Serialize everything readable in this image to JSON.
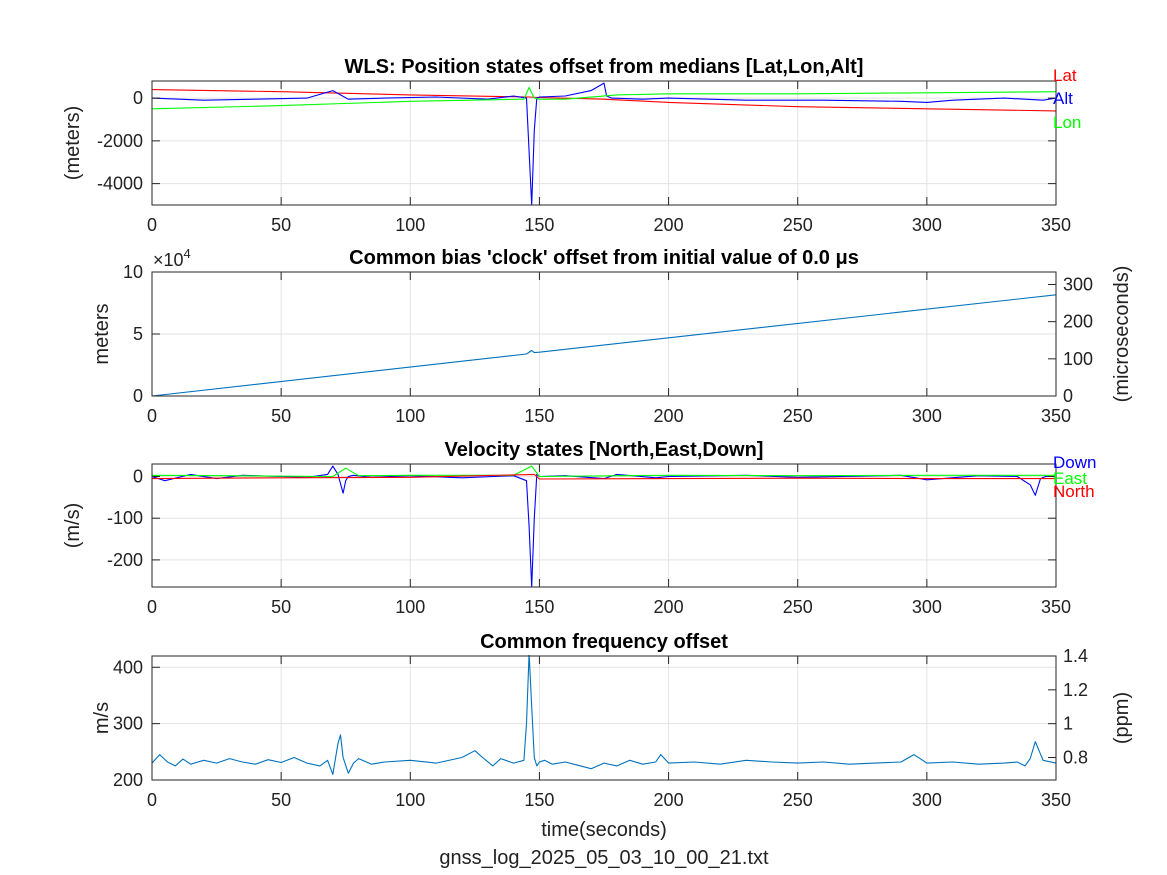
{
  "footer": {
    "filename": "gnss_log_2025_05_03_10_00_21.txt"
  },
  "colors": {
    "red": "#ff0000",
    "green": "#00ff00",
    "blue": "#0000ff",
    "series": "#0072bd"
  },
  "chart_data": [
    {
      "type": "line",
      "title": "WLS: Position states offset from medians [Lat,Lon,Alt]",
      "xlabel": "",
      "ylabel": "(meters)",
      "xlim": [
        0,
        350
      ],
      "ylim": [
        -5000,
        800
      ],
      "xticks": [
        0,
        50,
        100,
        150,
        200,
        250,
        300,
        350
      ],
      "xtick_labels": [
        "0",
        "50",
        "100",
        "150",
        "200",
        "250",
        "300",
        "350"
      ],
      "yticks": [
        0,
        -2000,
        -4000
      ],
      "ytick_labels": [
        "0",
        "-2000",
        "-4000"
      ],
      "grid": true,
      "legend_placement": "right",
      "series": [
        {
          "name": "Lat",
          "color": "#ff0000",
          "x": [
            0,
            50,
            100,
            146,
            150,
            175,
            200,
            250,
            300,
            350
          ],
          "y": [
            400,
            300,
            150,
            50,
            30,
            -50,
            -200,
            -400,
            -500,
            -600
          ]
        },
        {
          "name": "Alt",
          "color": "#0000ff",
          "x": [
            0,
            20,
            40,
            60,
            70,
            73,
            76,
            90,
            110,
            130,
            140,
            145,
            146,
            147,
            148,
            149,
            150,
            160,
            170,
            175,
            176,
            178,
            190,
            200,
            230,
            260,
            290,
            300,
            310,
            330,
            345,
            350
          ],
          "y": [
            0,
            -100,
            -50,
            0,
            350,
            150,
            -50,
            0,
            50,
            -50,
            100,
            0,
            -2500,
            -5000,
            -1500,
            0,
            50,
            100,
            350,
            700,
            100,
            0,
            -50,
            0,
            -100,
            -100,
            -150,
            -200,
            -100,
            0,
            -100,
            0
          ]
        },
        {
          "name": "Lon",
          "color": "#00ff00",
          "x": [
            0,
            50,
            100,
            144,
            146,
            148,
            150,
            160,
            180,
            200,
            250,
            300,
            350
          ],
          "y": [
            -500,
            -350,
            -150,
            -50,
            500,
            0,
            -50,
            -50,
            150,
            200,
            200,
            250,
            300
          ]
        }
      ]
    },
    {
      "type": "line",
      "title": "Common bias 'clock' offset from initial value of 0.0 μs",
      "xlabel": "",
      "ylabel": "meters",
      "ylabel_right": "(microseconds)",
      "exponent_label": "×10",
      "exponent_power": "4",
      "xlim": [
        0,
        350
      ],
      "ylim": [
        0,
        100000
      ],
      "ylim_right": [
        0,
        333.6
      ],
      "xticks": [
        0,
        50,
        100,
        150,
        200,
        250,
        300,
        350
      ],
      "xtick_labels": [
        "0",
        "50",
        "100",
        "150",
        "200",
        "250",
        "300",
        "350"
      ],
      "yticks": [
        0,
        50000,
        100000
      ],
      "ytick_labels": [
        "0",
        "5",
        "10"
      ],
      "yticks_right": [
        0,
        100,
        200,
        300
      ],
      "ytick_labels_right": [
        "0",
        "100",
        "200",
        "300"
      ],
      "grid": true,
      "series": [
        {
          "name": "",
          "color": "#0072bd",
          "x": [
            0,
            145,
            147,
            148,
            150,
            350
          ],
          "y": [
            0,
            33900,
            36700,
            35000,
            35300,
            81600
          ]
        }
      ]
    },
    {
      "type": "line",
      "title": "Velocity states [North,East,Down]",
      "xlabel": "",
      "ylabel": "(m/s)",
      "xlim": [
        0,
        350
      ],
      "ylim": [
        -265,
        30
      ],
      "xticks": [
        0,
        50,
        100,
        150,
        200,
        250,
        300,
        350
      ],
      "xtick_labels": [
        "0",
        "50",
        "100",
        "150",
        "200",
        "250",
        "300",
        "350"
      ],
      "yticks": [
        0,
        -100,
        -200
      ],
      "ytick_labels": [
        "0",
        "-100",
        "-200"
      ],
      "grid": true,
      "legend_placement": "right",
      "series": [
        {
          "name": "Down",
          "color": "#0000ff",
          "x": [
            0,
            5,
            15,
            25,
            35,
            50,
            60,
            68,
            70,
            72,
            74,
            75,
            76,
            78,
            85,
            100,
            120,
            140,
            145,
            146,
            147,
            148,
            149,
            150,
            160,
            175,
            180,
            195,
            200,
            230,
            250,
            290,
            300,
            320,
            335,
            340,
            342,
            344,
            346,
            350
          ],
          "y": [
            0,
            -10,
            5,
            -5,
            3,
            0,
            -2,
            5,
            25,
            5,
            -40,
            -10,
            0,
            3,
            -2,
            2,
            -3,
            2,
            -10,
            -120,
            -265,
            -100,
            5,
            0,
            2,
            -5,
            5,
            -3,
            0,
            3,
            -2,
            3,
            -8,
            2,
            0,
            -20,
            -45,
            -5,
            0,
            0
          ]
        },
        {
          "name": "East",
          "color": "#00ff00",
          "x": [
            0,
            30,
            70,
            75,
            80,
            100,
            140,
            147,
            150,
            200,
            250,
            300,
            350
          ],
          "y": [
            3,
            2,
            0,
            20,
            2,
            3,
            3,
            25,
            0,
            3,
            2,
            3,
            3
          ]
        },
        {
          "name": "North",
          "color": "#ff0000",
          "x": [
            0,
            50,
            100,
            148,
            150,
            200,
            250,
            300,
            350
          ],
          "y": [
            -5,
            -3,
            -2,
            5,
            -6,
            -5,
            -4,
            -5,
            -5
          ]
        }
      ]
    },
    {
      "type": "line",
      "title": "Common frequency offset",
      "xlabel": "time(seconds)",
      "ylabel": "m/s",
      "ylabel_right": "(ppm)",
      "xlim": [
        0,
        350
      ],
      "ylim": [
        200,
        420
      ],
      "ylim_right": [
        0.667,
        1.4
      ],
      "xticks": [
        0,
        50,
        100,
        150,
        200,
        250,
        300,
        350
      ],
      "xtick_labels": [
        "0",
        "50",
        "100",
        "150",
        "200",
        "250",
        "300",
        "350"
      ],
      "yticks": [
        200,
        300,
        400
      ],
      "ytick_labels": [
        "200",
        "300",
        "400"
      ],
      "yticks_right": [
        0.8,
        1.0,
        1.2,
        1.4
      ],
      "ytick_labels_right": [
        "0.8",
        "1",
        "1.2",
        "1.4"
      ],
      "grid": true,
      "series": [
        {
          "name": "",
          "color": "#0072bd",
          "x": [
            0,
            3,
            6,
            9,
            12,
            15,
            20,
            25,
            30,
            35,
            40,
            45,
            50,
            55,
            60,
            65,
            68,
            70,
            72,
            73,
            74,
            76,
            78,
            80,
            85,
            90,
            100,
            110,
            120,
            125,
            128,
            132,
            135,
            140,
            144,
            145,
            146,
            147,
            148,
            149,
            150,
            152,
            155,
            160,
            165,
            170,
            175,
            180,
            185,
            190,
            195,
            197,
            200,
            210,
            220,
            230,
            240,
            250,
            260,
            270,
            280,
            290,
            295,
            300,
            310,
            320,
            330,
            335,
            338,
            340,
            342,
            345,
            350
          ],
          "y": [
            230,
            245,
            232,
            225,
            237,
            228,
            235,
            230,
            238,
            232,
            228,
            236,
            231,
            240,
            230,
            225,
            235,
            210,
            265,
            280,
            240,
            212,
            230,
            238,
            228,
            232,
            235,
            230,
            240,
            252,
            240,
            225,
            238,
            230,
            235,
            300,
            425,
            330,
            240,
            225,
            232,
            235,
            228,
            232,
            226,
            220,
            230,
            225,
            235,
            228,
            232,
            245,
            230,
            232,
            228,
            235,
            232,
            230,
            232,
            228,
            230,
            232,
            245,
            230,
            232,
            228,
            230,
            232,
            225,
            238,
            268,
            235,
            230
          ]
        }
      ]
    }
  ]
}
